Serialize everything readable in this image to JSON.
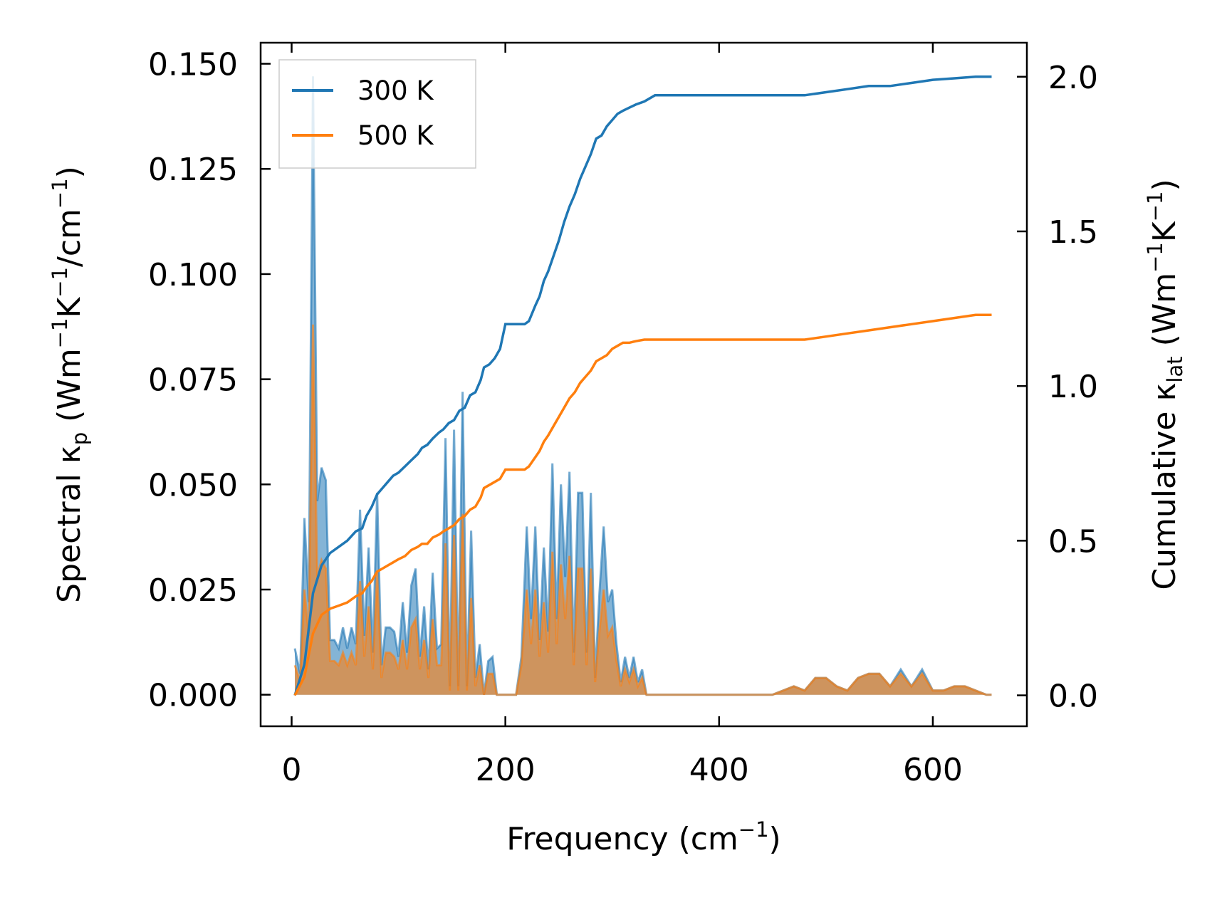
{
  "chart_data": {
    "type": "line",
    "x_axis": {
      "label_main": "Frequency (cm",
      "label_sup": "−1",
      "label_end": ")",
      "ticks": [
        0,
        200,
        400,
        600
      ],
      "tick_labels": [
        "0",
        "200",
        "400",
        "600"
      ],
      "range": [
        -29,
        688
      ]
    },
    "y_left": {
      "label_main": "Spectral κ",
      "label_sub": "p",
      "label_units": " (Wm",
      "label_sup1": "−1",
      "label_mid": "K",
      "label_sup2": "−1",
      "label_mid2": "/cm",
      "label_sup3": "−1",
      "label_end": ")",
      "ticks": [
        0,
        0.025,
        0.05,
        0.075,
        0.1,
        0.125,
        0.15
      ],
      "tick_labels": [
        "0.000",
        "0.025",
        "0.050",
        "0.075",
        "0.100",
        "0.125",
        "0.150"
      ],
      "range": [
        -0.0075,
        0.155
      ]
    },
    "y_right": {
      "label_main": "Cumulative κ",
      "label_sub": "lat",
      "label_units": " (Wm",
      "label_sup1": "−1",
      "label_mid": "K",
      "label_sup2": "−1",
      "label_end": ")",
      "ticks": [
        0,
        0.5,
        1.0,
        1.5,
        2.0
      ],
      "tick_labels": [
        "0.0",
        "0.5",
        "1.0",
        "1.5",
        "2.0"
      ],
      "range": [
        -0.1,
        2.11
      ]
    },
    "colors": {
      "s300": "#1f77b4",
      "s500": "#ff7f0e"
    },
    "legend": {
      "position": "top-left",
      "entries": [
        "300 K",
        "500 K"
      ]
    },
    "spectral_x": [
      3,
      8,
      12,
      16,
      20,
      24,
      28,
      32,
      36,
      40,
      44,
      48,
      52,
      56,
      60,
      64,
      68,
      72,
      76,
      80,
      84,
      88,
      92,
      96,
      100,
      104,
      108,
      112,
      116,
      120,
      124,
      128,
      132,
      136,
      140,
      144,
      148,
      152,
      156,
      160,
      164,
      168,
      172,
      176,
      180,
      184,
      188,
      192,
      196,
      200,
      205,
      210,
      215,
      220,
      224,
      228,
      232,
      236,
      240,
      244,
      248,
      252,
      256,
      260,
      264,
      268,
      272,
      276,
      280,
      284,
      288,
      292,
      296,
      300,
      304,
      308,
      312,
      316,
      320,
      324,
      328,
      332,
      336,
      340,
      345,
      360,
      400,
      450,
      470,
      480,
      490,
      500,
      510,
      520,
      530,
      540,
      550,
      560,
      570,
      580,
      590,
      600,
      610,
      620,
      630,
      640,
      650,
      655
    ],
    "series": [
      {
        "name": "300 K",
        "spectral": [
          0.011,
          0.005,
          0.042,
          0.022,
          0.147,
          0.046,
          0.054,
          0.051,
          0.013,
          0.013,
          0.011,
          0.016,
          0.011,
          0.016,
          0.012,
          0.044,
          0.014,
          0.035,
          0.01,
          0.048,
          0.007,
          0.016,
          0.016,
          0.015,
          0.009,
          0.022,
          0.01,
          0.026,
          0.03,
          0.009,
          0.021,
          0.006,
          0.029,
          0.011,
          0.012,
          0.061,
          0.002,
          0.063,
          0.002,
          0.072,
          0.002,
          0.039,
          0.004,
          0.012,
          0.0,
          0.008,
          0.009,
          0.0,
          0.0,
          0.0,
          0.0,
          0.0,
          0.009,
          0.04,
          0.018,
          0.04,
          0.013,
          0.035,
          0.015,
          0.055,
          0.018,
          0.05,
          0.028,
          0.053,
          0.01,
          0.048,
          0.048,
          0.01,
          0.048,
          0.004,
          0.024,
          0.04,
          0.022,
          0.025,
          0.012,
          0.003,
          0.009,
          0.004,
          0.009,
          0.003,
          0.006,
          0.0,
          0.0,
          0.0,
          0.0,
          0.0,
          0.0,
          0.0,
          0.002,
          0.001,
          0.004,
          0.004,
          0.002,
          0.001,
          0.004,
          0.005,
          0.005,
          0.002,
          0.006,
          0.002,
          0.006,
          0.001,
          0.001,
          0.002,
          0.002,
          0.001,
          0.0,
          0.0
        ],
        "cumulative_x": [
          3,
          12,
          20,
          28,
          36,
          44,
          52,
          60,
          66,
          70,
          75,
          80,
          85,
          90,
          95,
          100,
          106,
          112,
          118,
          122,
          127,
          132,
          138,
          142,
          147,
          152,
          157,
          162,
          167,
          172,
          177,
          180,
          185,
          190,
          195,
          200,
          206,
          212,
          218,
          222,
          228,
          232,
          236,
          240,
          245,
          250,
          255,
          260,
          265,
          270,
          275,
          280,
          285,
          290,
          295,
          300,
          305,
          310,
          316,
          322,
          330,
          340,
          360,
          400,
          450,
          480,
          500,
          520,
          540,
          560,
          580,
          600,
          620,
          640,
          655
        ],
        "cumulative": [
          0.0,
          0.1,
          0.33,
          0.42,
          0.46,
          0.48,
          0.5,
          0.53,
          0.54,
          0.58,
          0.61,
          0.65,
          0.67,
          0.69,
          0.71,
          0.72,
          0.74,
          0.76,
          0.78,
          0.8,
          0.81,
          0.83,
          0.85,
          0.86,
          0.88,
          0.89,
          0.92,
          0.93,
          0.97,
          0.98,
          1.02,
          1.06,
          1.07,
          1.09,
          1.12,
          1.2,
          1.2,
          1.2,
          1.2,
          1.21,
          1.26,
          1.29,
          1.34,
          1.37,
          1.42,
          1.47,
          1.53,
          1.58,
          1.62,
          1.67,
          1.71,
          1.75,
          1.8,
          1.81,
          1.84,
          1.86,
          1.88,
          1.89,
          1.9,
          1.91,
          1.92,
          1.94,
          1.94,
          1.94,
          1.94,
          1.94,
          1.95,
          1.96,
          1.97,
          1.97,
          1.98,
          1.99,
          1.995,
          2.0,
          2.0
        ]
      },
      {
        "name": "500 K",
        "spectral": [
          0.007,
          0.003,
          0.025,
          0.014,
          0.088,
          0.028,
          0.032,
          0.03,
          0.008,
          0.008,
          0.007,
          0.01,
          0.007,
          0.01,
          0.007,
          0.027,
          0.009,
          0.021,
          0.006,
          0.029,
          0.004,
          0.01,
          0.01,
          0.009,
          0.006,
          0.013,
          0.006,
          0.016,
          0.018,
          0.006,
          0.013,
          0.004,
          0.018,
          0.007,
          0.007,
          0.036,
          0.001,
          0.038,
          0.001,
          0.043,
          0.001,
          0.023,
          0.002,
          0.007,
          0.0,
          0.005,
          0.005,
          0.0,
          0.0,
          0.0,
          0.0,
          0.0,
          0.007,
          0.025,
          0.012,
          0.025,
          0.009,
          0.022,
          0.01,
          0.034,
          0.012,
          0.031,
          0.018,
          0.033,
          0.007,
          0.03,
          0.03,
          0.007,
          0.03,
          0.003,
          0.015,
          0.025,
          0.014,
          0.016,
          0.008,
          0.002,
          0.006,
          0.003,
          0.006,
          0.002,
          0.004,
          0.0,
          0.0,
          0.0,
          0.0,
          0.0,
          0.0,
          0.0,
          0.002,
          0.001,
          0.004,
          0.004,
          0.002,
          0.001,
          0.004,
          0.005,
          0.005,
          0.002,
          0.005,
          0.002,
          0.005,
          0.001,
          0.001,
          0.002,
          0.002,
          0.001,
          0.0,
          0.0
        ],
        "cumulative_x": [
          3,
          12,
          20,
          28,
          36,
          44,
          52,
          60,
          66,
          70,
          75,
          80,
          85,
          90,
          95,
          100,
          106,
          112,
          118,
          122,
          127,
          132,
          138,
          142,
          147,
          152,
          157,
          162,
          167,
          172,
          177,
          180,
          185,
          190,
          195,
          200,
          206,
          212,
          218,
          222,
          228,
          232,
          236,
          240,
          245,
          250,
          255,
          260,
          265,
          270,
          275,
          280,
          285,
          290,
          295,
          300,
          305,
          310,
          316,
          322,
          330,
          340,
          360,
          400,
          450,
          480,
          500,
          520,
          540,
          560,
          580,
          600,
          620,
          640,
          655
        ],
        "cumulative": [
          0.0,
          0.06,
          0.2,
          0.26,
          0.28,
          0.29,
          0.3,
          0.32,
          0.33,
          0.35,
          0.37,
          0.4,
          0.41,
          0.42,
          0.43,
          0.44,
          0.45,
          0.47,
          0.48,
          0.49,
          0.49,
          0.51,
          0.52,
          0.53,
          0.54,
          0.55,
          0.57,
          0.58,
          0.6,
          0.61,
          0.64,
          0.67,
          0.68,
          0.69,
          0.7,
          0.73,
          0.73,
          0.73,
          0.73,
          0.74,
          0.77,
          0.79,
          0.82,
          0.84,
          0.87,
          0.9,
          0.93,
          0.96,
          0.98,
          1.01,
          1.03,
          1.05,
          1.08,
          1.09,
          1.1,
          1.12,
          1.13,
          1.14,
          1.14,
          1.145,
          1.15,
          1.15,
          1.15,
          1.15,
          1.15,
          1.15,
          1.16,
          1.17,
          1.18,
          1.19,
          1.2,
          1.21,
          1.22,
          1.23,
          1.23
        ]
      }
    ]
  }
}
